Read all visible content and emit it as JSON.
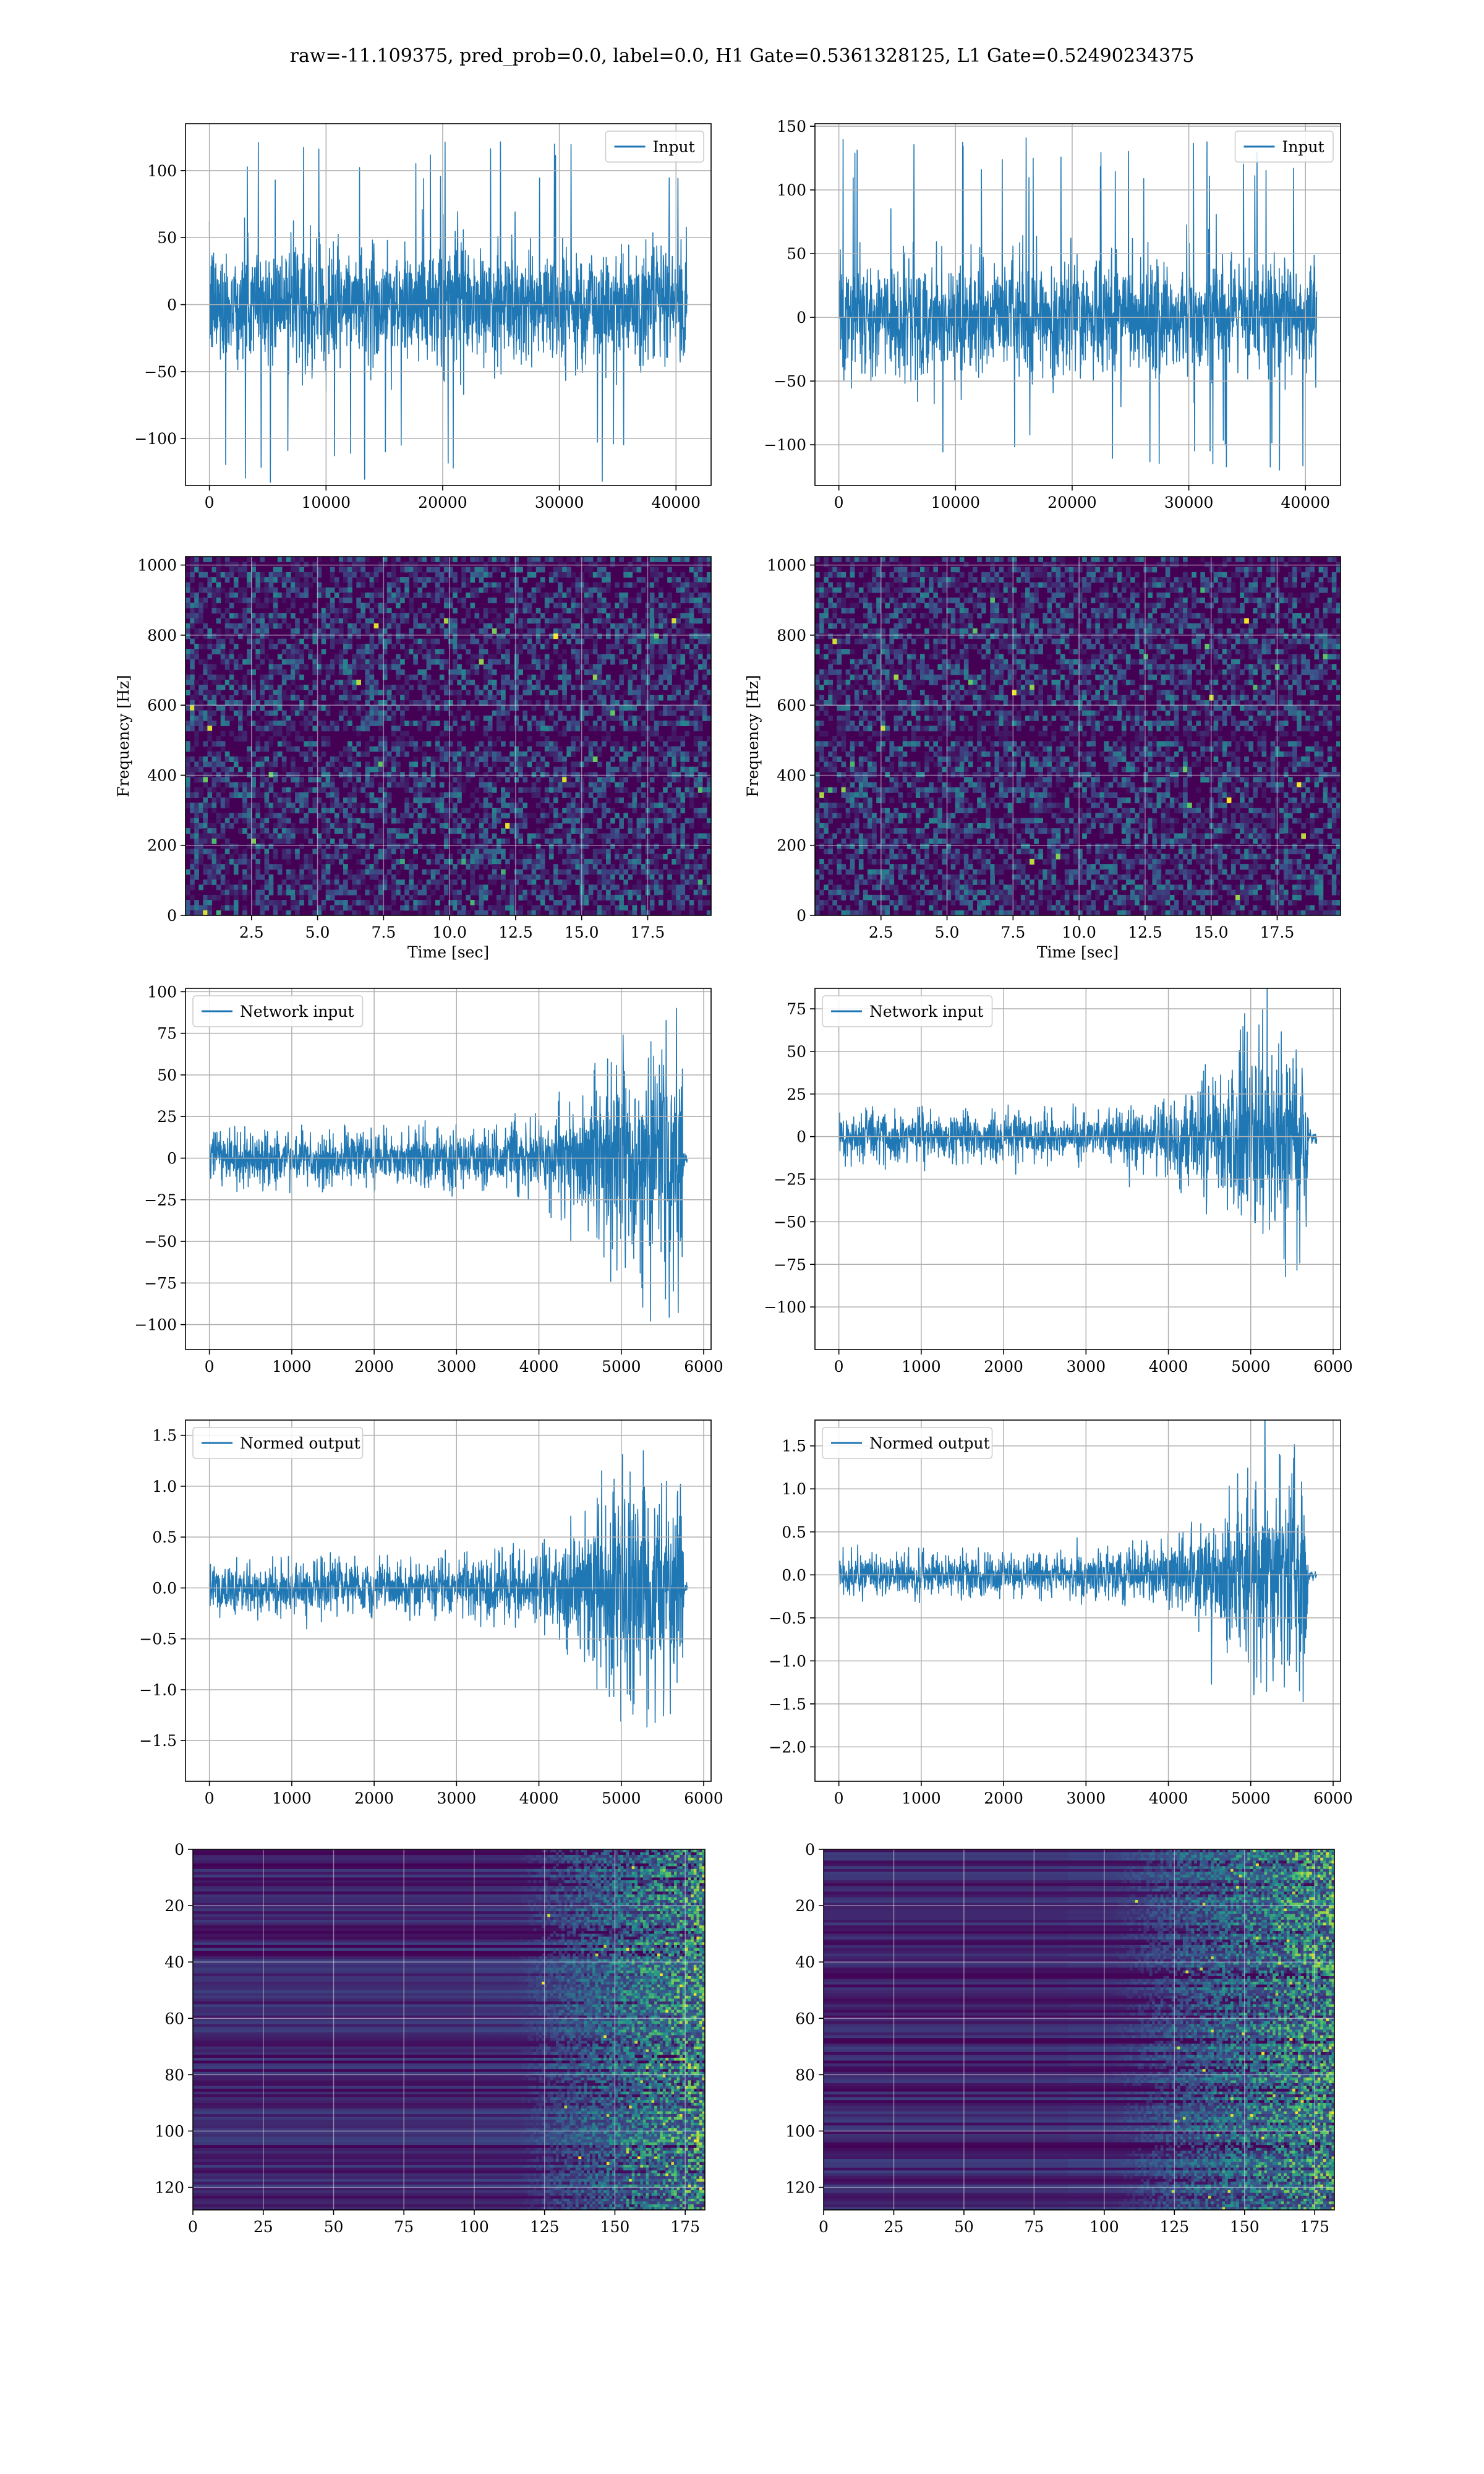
{
  "figure": {
    "suptitle": "raw=-11.109375, pred_prob=0.0, label=0.0, H1 Gate=0.5361328125, L1 Gate=0.52490234375"
  },
  "colors": {
    "series": "#1f77b4",
    "grid": "#b0b0b0",
    "viridis": [
      "#440154",
      "#3b528b",
      "#21918c",
      "#5ec962",
      "#fde725"
    ]
  },
  "chart_data": [
    {
      "id": "h1_input",
      "type": "line",
      "title": "",
      "xlabel": "",
      "ylabel": "",
      "series": [
        {
          "name": "Input"
        }
      ],
      "x_range": [
        0,
        40960
      ],
      "xlim": [
        -2048,
        43008
      ],
      "ylim": [
        -135,
        135
      ],
      "x_ticks": [
        0,
        10000,
        20000,
        30000,
        40000
      ],
      "x_tick_labels": [
        "0",
        "10000",
        "20000",
        "30000",
        "40000"
      ],
      "y_ticks": [
        -100,
        -50,
        0,
        50,
        100
      ],
      "y_tick_labels": [
        "−100",
        "−50",
        "0",
        "50",
        "100"
      ],
      "envelope": {
        "bulk": [
          -62,
          62
        ],
        "peak_max": 124,
        "peak_min": -133
      },
      "legend": "upper right",
      "grid": true
    },
    {
      "id": "l1_input",
      "type": "line",
      "title": "",
      "xlabel": "",
      "ylabel": "",
      "series": [
        {
          "name": "Input"
        }
      ],
      "x_range": [
        0,
        40960
      ],
      "xlim": [
        -2048,
        43008
      ],
      "ylim": [
        -132,
        152
      ],
      "x_ticks": [
        0,
        10000,
        20000,
        30000,
        40000
      ],
      "x_tick_labels": [
        "0",
        "10000",
        "20000",
        "30000",
        "40000"
      ],
      "y_ticks": [
        -100,
        -50,
        0,
        50,
        100,
        150
      ],
      "y_tick_labels": [
        "−100",
        "−50",
        "0",
        "50",
        "100",
        "150"
      ],
      "envelope": {
        "bulk": [
          -62,
          62
        ],
        "peak_max": 141,
        "peak_min": -122
      },
      "legend": "upper right",
      "grid": true
    },
    {
      "id": "h1_spectrogram",
      "type": "heatmap",
      "title": "",
      "xlabel": "Time [sec]",
      "ylabel": "Frequency [Hz]",
      "xlim": [
        0,
        19.9
      ],
      "ylim": [
        0,
        1024
      ],
      "x_ticks": [
        2.5,
        5.0,
        7.5,
        10.0,
        12.5,
        15.0,
        17.5
      ],
      "x_tick_labels": [
        "2.5",
        "5.0",
        "7.5",
        "10.0",
        "12.5",
        "15.0",
        "17.5"
      ],
      "y_ticks": [
        0,
        200,
        400,
        600,
        800,
        1000
      ],
      "y_tick_labels": [
        "0",
        "200",
        "400",
        "600",
        "800",
        "1000"
      ],
      "colormap": "viridis",
      "grid": true
    },
    {
      "id": "l1_spectrogram",
      "type": "heatmap",
      "title": "",
      "xlabel": "Time [sec]",
      "ylabel": "Frequency [Hz]",
      "xlim": [
        0,
        19.9
      ],
      "ylim": [
        0,
        1024
      ],
      "x_ticks": [
        2.5,
        5.0,
        7.5,
        10.0,
        12.5,
        15.0,
        17.5
      ],
      "x_tick_labels": [
        "2.5",
        "5.0",
        "7.5",
        "10.0",
        "12.5",
        "15.0",
        "17.5"
      ],
      "y_ticks": [
        0,
        200,
        400,
        600,
        800,
        1000
      ],
      "y_tick_labels": [
        "0",
        "200",
        "400",
        "600",
        "800",
        "1000"
      ],
      "colormap": "viridis",
      "grid": true
    },
    {
      "id": "h1_network_input",
      "type": "line",
      "title": "",
      "xlabel": "",
      "ylabel": "",
      "series": [
        {
          "name": "Network input"
        }
      ],
      "x_range": [
        0,
        5800
      ],
      "xlim": [
        -290,
        6090
      ],
      "ylim": [
        -115,
        102
      ],
      "x_ticks": [
        0,
        1000,
        2000,
        3000,
        4000,
        5000,
        6000
      ],
      "x_tick_labels": [
        "0",
        "1000",
        "2000",
        "3000",
        "4000",
        "5000",
        "6000"
      ],
      "y_ticks": [
        -100,
        -75,
        -50,
        -25,
        0,
        25,
        50,
        75,
        100
      ],
      "y_tick_labels": [
        "−100",
        "−75",
        "−50",
        "−25",
        "0",
        "25",
        "50",
        "75",
        "100"
      ],
      "envelope_keypoints": [
        [
          0,
          17
        ],
        [
          2800,
          17
        ],
        [
          4000,
          25
        ],
        [
          4600,
          45
        ],
        [
          5000,
          75
        ],
        [
          5750,
          80
        ],
        [
          5760,
          4
        ],
        [
          5800,
          4
        ]
      ],
      "legend": "upper left",
      "grid": true
    },
    {
      "id": "l1_network_input",
      "type": "line",
      "title": "",
      "xlabel": "",
      "ylabel": "",
      "series": [
        {
          "name": "Network input"
        }
      ],
      "x_range": [
        0,
        5800
      ],
      "xlim": [
        -290,
        6090
      ],
      "ylim": [
        -125,
        87
      ],
      "x_ticks": [
        0,
        1000,
        2000,
        3000,
        4000,
        5000,
        6000
      ],
      "x_tick_labels": [
        "0",
        "1000",
        "2000",
        "3000",
        "4000",
        "5000",
        "6000"
      ],
      "y_ticks": [
        -100,
        -75,
        -50,
        -25,
        0,
        25,
        50,
        75
      ],
      "y_tick_labels": [
        "−100",
        "−75",
        "−50",
        "−25",
        "0",
        "25",
        "50",
        "75"
      ],
      "envelope_keypoints": [
        [
          0,
          15
        ],
        [
          3200,
          15
        ],
        [
          4200,
          25
        ],
        [
          4600,
          45
        ],
        [
          5000,
          70
        ],
        [
          5680,
          70
        ],
        [
          5700,
          4
        ],
        [
          5800,
          4
        ]
      ],
      "legend": "upper left",
      "grid": true
    },
    {
      "id": "h1_normed_output",
      "type": "line",
      "title": "",
      "xlabel": "",
      "ylabel": "",
      "series": [
        {
          "name": "Normed output"
        }
      ],
      "x_range": [
        0,
        5800
      ],
      "xlim": [
        -290,
        6090
      ],
      "ylim": [
        -1.9,
        1.65
      ],
      "x_ticks": [
        0,
        1000,
        2000,
        3000,
        4000,
        5000,
        6000
      ],
      "x_tick_labels": [
        "0",
        "1000",
        "2000",
        "3000",
        "4000",
        "5000",
        "6000"
      ],
      "y_ticks": [
        -1.5,
        -1.0,
        -0.5,
        0.0,
        0.5,
        1.0,
        1.5
      ],
      "y_tick_labels": [
        "−1.5",
        "−1.0",
        "−0.5",
        "0.0",
        "0.5",
        "1.0",
        "1.5"
      ],
      "envelope_keypoints": [
        [
          0,
          0.27
        ],
        [
          2800,
          0.27
        ],
        [
          4000,
          0.4
        ],
        [
          4600,
          0.7
        ],
        [
          5000,
          1.2
        ],
        [
          5750,
          1.25
        ],
        [
          5760,
          0.06
        ],
        [
          5800,
          0.06
        ]
      ],
      "legend": "upper left",
      "grid": true
    },
    {
      "id": "l1_normed_output",
      "type": "line",
      "title": "",
      "xlabel": "",
      "ylabel": "",
      "series": [
        {
          "name": "Normed output"
        }
      ],
      "x_range": [
        0,
        5800
      ],
      "xlim": [
        -290,
        6090
      ],
      "ylim": [
        -2.4,
        1.8
      ],
      "x_ticks": [
        0,
        1000,
        2000,
        3000,
        4000,
        5000,
        6000
      ],
      "x_tick_labels": [
        "0",
        "1000",
        "2000",
        "3000",
        "4000",
        "5000",
        "6000"
      ],
      "y_ticks": [
        -2.0,
        -1.5,
        -1.0,
        -0.5,
        0.0,
        0.5,
        1.0,
        1.5
      ],
      "y_tick_labels": [
        "−2.0",
        "−1.5",
        "−1.0",
        "−0.5",
        "0.0",
        "0.5",
        "1.0",
        "1.5"
      ],
      "envelope_keypoints": [
        [
          0,
          0.27
        ],
        [
          3200,
          0.27
        ],
        [
          4200,
          0.45
        ],
        [
          4600,
          0.8
        ],
        [
          5000,
          1.3
        ],
        [
          5680,
          1.3
        ],
        [
          5700,
          0.06
        ],
        [
          5800,
          0.06
        ]
      ],
      "legend": "upper left",
      "grid": true
    },
    {
      "id": "h1_feature_map",
      "type": "heatmap",
      "title": "",
      "xlabel": "",
      "ylabel": "",
      "xlim": [
        0,
        182
      ],
      "ylim": [
        128,
        0
      ],
      "x_ticks": [
        0,
        25,
        50,
        75,
        100,
        125,
        150,
        175
      ],
      "x_tick_labels": [
        "0",
        "25",
        "50",
        "75",
        "100",
        "125",
        "150",
        "175"
      ],
      "y_ticks": [
        0,
        20,
        40,
        60,
        80,
        100,
        120
      ],
      "y_tick_labels": [
        "0",
        "20",
        "40",
        "60",
        "80",
        "100",
        "120"
      ],
      "colormap": "viridis",
      "activity_onset_column": 115,
      "grid": true
    },
    {
      "id": "l1_feature_map",
      "type": "heatmap",
      "title": "",
      "xlabel": "",
      "ylabel": "",
      "xlim": [
        0,
        182
      ],
      "ylim": [
        128,
        0
      ],
      "x_ticks": [
        0,
        25,
        50,
        75,
        100,
        125,
        150,
        175
      ],
      "x_tick_labels": [
        "0",
        "25",
        "50",
        "75",
        "100",
        "125",
        "150",
        "175"
      ],
      "y_ticks": [
        0,
        20,
        40,
        60,
        80,
        100,
        120
      ],
      "y_tick_labels": [
        "0",
        "20",
        "40",
        "60",
        "80",
        "100",
        "120"
      ],
      "colormap": "viridis",
      "activity_onset_column": 102,
      "grid": true
    }
  ]
}
